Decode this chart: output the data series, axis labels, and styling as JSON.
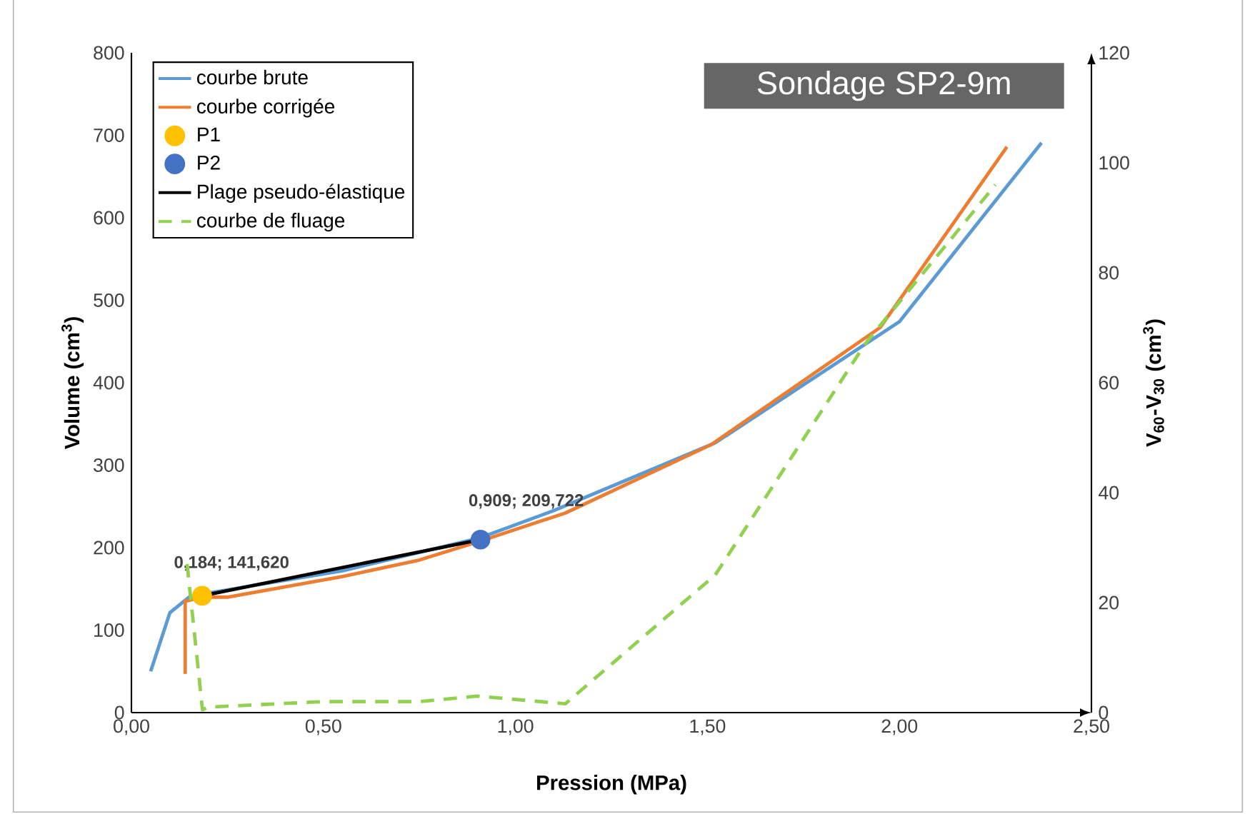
{
  "chart_data": {
    "type": "line",
    "title": "Sondage SP2-9m",
    "xlabel": "Pression (MPa)",
    "ylabel": "Volume (cm$^{3}$)",
    "y2label": "V$_{60}$-V$_{30}$ (cm$^{3}$)",
    "xlim": [
      0,
      2.5
    ],
    "xticks": [
      {
        "value": 0,
        "label": "0,00"
      },
      {
        "value": 0.5,
        "label": "0,50"
      },
      {
        "value": 1,
        "label": "1,00"
      },
      {
        "value": 1.5,
        "label": "1,50"
      },
      {
        "value": 2,
        "label": "2,00"
      },
      {
        "value": 2.5,
        "label": "2,50"
      }
    ],
    "ylim": [
      0,
      800
    ],
    "yticks": [
      0,
      100,
      200,
      300,
      400,
      500,
      600,
      700,
      800
    ],
    "y2lim": [
      0,
      120
    ],
    "y2ticks": [
      0,
      20,
      40,
      60,
      80,
      100,
      120
    ],
    "legend": "top left",
    "grid": false,
    "series": [
      {
        "name": "courbe brute",
        "color": "#5b9bd5",
        "marker": "none",
        "x": [
          0.05,
          0.1,
          0.15,
          0.2,
          0.55,
          0.909,
          1.1,
          1.52,
          2.0,
          2.37
        ],
        "values": [
          50,
          121,
          140,
          145,
          172,
          212,
          245,
          327,
          474,
          691
        ]
      },
      {
        "name": "courbe corrigée",
        "color": "#ed7d31",
        "marker": "none",
        "x": [
          0.14,
          0.14,
          0.184,
          0.25,
          0.55,
          0.75,
          0.909,
          1.13,
          1.51,
          1.95,
          2.28
        ],
        "values": [
          47,
          135,
          140,
          140,
          165,
          185,
          208,
          242,
          325,
          467,
          686
        ]
      },
      {
        "name": "P1",
        "type": "scatter",
        "color": "#ffc000",
        "marker": "circle",
        "x": [
          0.184
        ],
        "values": [
          141.62
        ],
        "value_labels": [
          "0,184; 141,620"
        ]
      },
      {
        "name": "P2",
        "type": "scatter",
        "color": "#4472c4",
        "marker": "circle",
        "x": [
          0.909
        ],
        "values": [
          209.722
        ],
        "value_labels": [
          "0,909; 209,722"
        ]
      },
      {
        "name": "Plage pseudo-élastique",
        "color": "#000000",
        "marker": "none",
        "x": [
          0.184,
          0.909
        ],
        "values": [
          141.62,
          209.722
        ]
      },
      {
        "name": "courbe de fluage",
        "axis": "y2",
        "line_style": "dashed",
        "color": "#92d050",
        "marker": "none",
        "x": [
          0.145,
          0.185,
          0.2,
          0.5,
          0.75,
          0.9,
          1.13,
          1.52,
          1.91,
          2.25
        ],
        "values": [
          27,
          0.5,
          1,
          2,
          2,
          3,
          1.6,
          25,
          67,
          96
        ]
      }
    ]
  }
}
